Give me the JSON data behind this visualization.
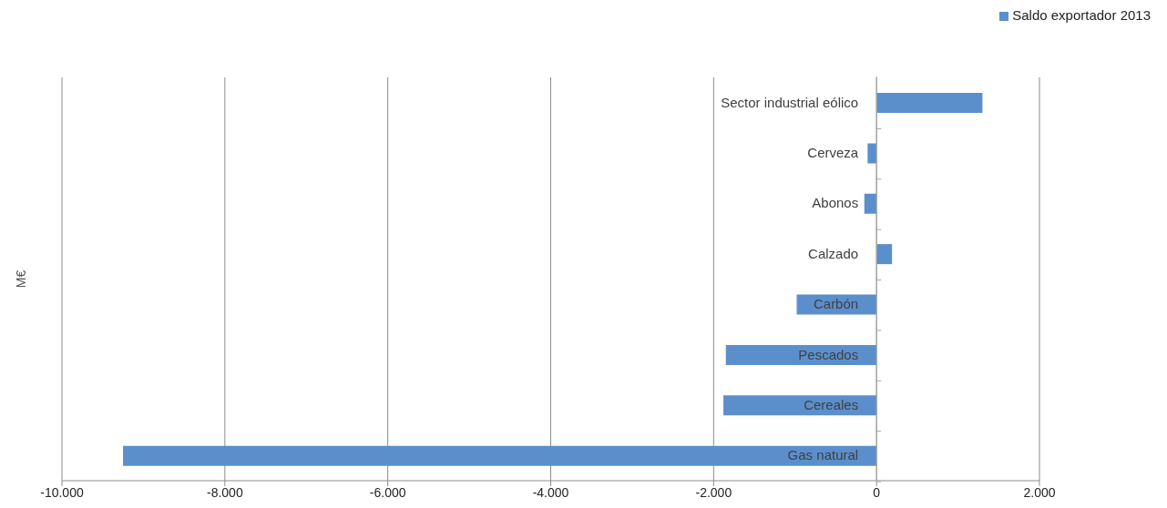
{
  "chart_data": {
    "type": "bar",
    "orientation": "horizontal",
    "ylabel": "M€",
    "categories": [
      "Sector industrial eólico",
      "Cerveza",
      "Abonos",
      "Calzado",
      "Carbón",
      "Pescados",
      "Cereales",
      "Gas natural"
    ],
    "series": [
      {
        "name": "Saldo exportador 2013",
        "color": "#5b8fcc",
        "values": [
          1300,
          -110,
          -150,
          190,
          -980,
          -1850,
          -1880,
          -9250
        ]
      }
    ],
    "xlim": [
      -10000,
      2000
    ],
    "xticks": [
      {
        "value": -10000,
        "label": "-10.000"
      },
      {
        "value": -8000,
        "label": "-8.000"
      },
      {
        "value": -6000,
        "label": "-6.000"
      },
      {
        "value": -4000,
        "label": "-4.000"
      },
      {
        "value": -2000,
        "label": "-2.000"
      },
      0,
      {
        "value": 2000,
        "label": "2.000"
      }
    ],
    "grid": "x",
    "legend": "top right"
  }
}
